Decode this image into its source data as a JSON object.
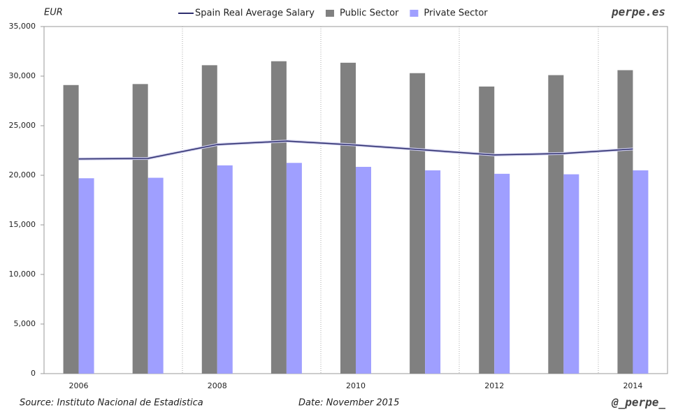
{
  "chart_data": {
    "type": "bar",
    "y_label": "EUR",
    "brand": "perpe.es",
    "source": "Source: Instituto Nacional de Estadistica",
    "date": "Date: November 2015",
    "handle": "@_perpe_",
    "categories": [
      "2006",
      null,
      "2008",
      null,
      "2010",
      null,
      "2012",
      null,
      "2014"
    ],
    "series": [
      {
        "name": "Spain Real Average Salary",
        "type": "line",
        "color": "#2e2e6e",
        "values": [
          21650,
          21700,
          23100,
          23450,
          23050,
          22550,
          22050,
          22200,
          22650
        ]
      },
      {
        "name": "Public Sector",
        "type": "bar",
        "color": "#808080",
        "values": [
          29100,
          29200,
          31100,
          31500,
          31350,
          30300,
          28950,
          30100,
          30600
        ]
      },
      {
        "name": "Private Sector",
        "type": "bar",
        "color": "#9f9fff",
        "values": [
          19700,
          19750,
          21000,
          21250,
          20850,
          20500,
          20150,
          20100,
          20500
        ]
      }
    ],
    "ylim": [
      0,
      35000
    ],
    "yticks": [
      0,
      {
        "value": 5000,
        "label": "5,000"
      },
      {
        "value": 10000,
        "label": "10,000"
      },
      {
        "value": 15000,
        "label": "15,000"
      },
      {
        "value": 20000,
        "label": "20,000"
      },
      {
        "value": 25000,
        "label": "25,000"
      },
      {
        "value": 30000,
        "label": "30,000"
      },
      {
        "value": 35000,
        "label": "35,000"
      }
    ]
  }
}
